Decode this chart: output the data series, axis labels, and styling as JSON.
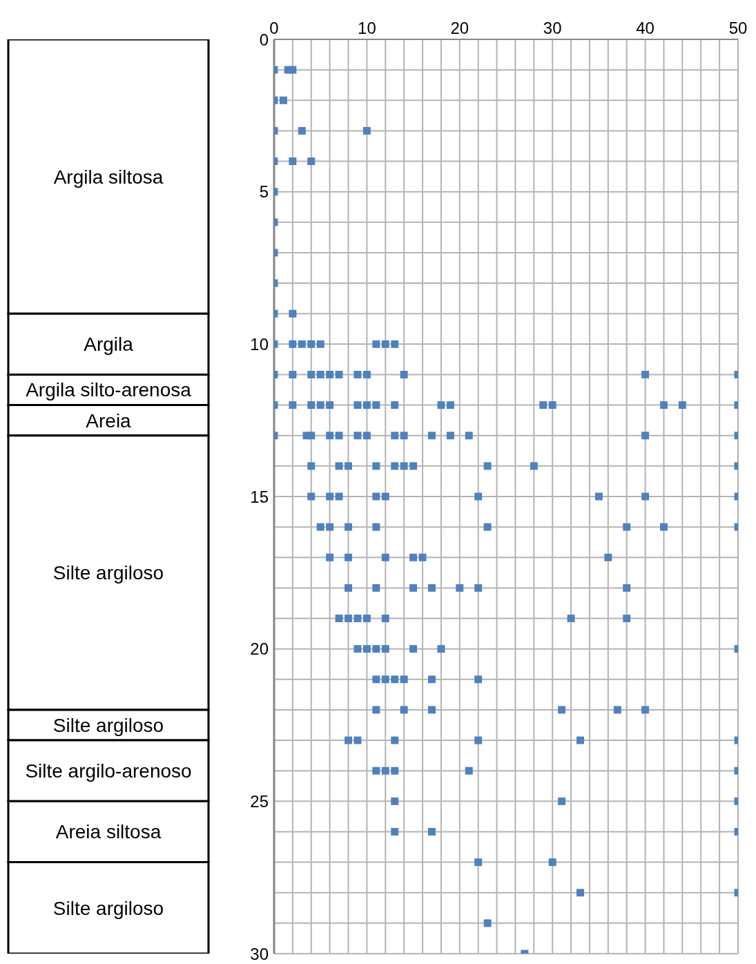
{
  "chart_data": [
    {
      "type": "bar",
      "stacked": true,
      "categories": [
        null
      ],
      "ylim": [
        30,
        0
      ],
      "tick_labels": false,
      "series": [
        {
          "name": "Argila siltosa",
          "color": "#ffffff",
          "values": [
            9
          ]
        },
        {
          "name": "Argila",
          "color": "#ffffff",
          "values": [
            2
          ]
        },
        {
          "name": "Argila silto-arenosa",
          "color": "#ffffff",
          "values": [
            1
          ]
        },
        {
          "name": "Areia",
          "color": "#ffffff",
          "values": [
            1
          ]
        },
        {
          "name": "Silte argiloso",
          "color": "#ffffff",
          "values": [
            9
          ]
        },
        {
          "name": "Silte argiloso",
          "color": "#ffffff",
          "values": [
            1
          ]
        },
        {
          "name": "Silte argilo-arenoso",
          "color": "#ffffff",
          "values": [
            2
          ]
        },
        {
          "name": "Areia siltosa",
          "color": "#ffffff",
          "values": [
            2
          ]
        },
        {
          "name": "Silte argiloso",
          "color": "#ffffff",
          "values": [
            3
          ]
        }
      ]
    },
    {
      "type": "scatter",
      "xlim": [
        0,
        50
      ],
      "xticks": [
        0,
        {
          "value": 2,
          "label": null
        },
        {
          "value": 4,
          "label": null
        },
        {
          "value": 6,
          "label": null
        },
        {
          "value": 8,
          "label": null
        },
        10,
        {
          "value": 12,
          "label": null
        },
        {
          "value": 14,
          "label": null
        },
        {
          "value": 16,
          "label": null
        },
        {
          "value": 18,
          "label": null
        },
        20,
        {
          "value": 22,
          "label": null
        },
        {
          "value": 24,
          "label": null
        },
        {
          "value": 26,
          "label": null
        },
        {
          "value": 28,
          "label": null
        },
        30,
        {
          "value": 32,
          "label": null
        },
        {
          "value": 34,
          "label": null
        },
        {
          "value": 36,
          "label": null
        },
        {
          "value": 38,
          "label": null
        },
        40,
        {
          "value": 42,
          "label": null
        },
        {
          "value": 44,
          "label": null
        },
        {
          "value": 46,
          "label": null
        },
        {
          "value": 48,
          "label": null
        },
        50
      ],
      "ylim": [
        30,
        0
      ],
      "yticks": [
        0,
        {
          "value": 1,
          "label": null
        },
        {
          "value": 2,
          "label": null
        },
        {
          "value": 3,
          "label": null
        },
        {
          "value": 4,
          "label": null
        },
        5,
        {
          "value": 6,
          "label": null
        },
        {
          "value": 7,
          "label": null
        },
        {
          "value": 8,
          "label": null
        },
        {
          "value": 9,
          "label": null
        },
        10,
        {
          "value": 11,
          "label": null
        },
        {
          "value": 12,
          "label": null
        },
        {
          "value": 13,
          "label": null
        },
        {
          "value": 14,
          "label": null
        },
        15,
        {
          "value": 16,
          "label": null
        },
        {
          "value": 17,
          "label": null
        },
        {
          "value": 18,
          "label": null
        },
        {
          "value": 19,
          "label": null
        },
        20,
        {
          "value": 21,
          "label": null
        },
        {
          "value": 22,
          "label": null
        },
        {
          "value": 23,
          "label": null
        },
        {
          "value": 24,
          "label": null
        },
        25,
        {
          "value": 26,
          "label": null
        },
        {
          "value": 27,
          "label": null
        },
        {
          "value": 28,
          "label": null
        },
        {
          "value": 29,
          "label": null
        },
        30
      ],
      "grid": true,
      "marker": "square",
      "series": [
        {
          "color": "#4f81bd",
          "x": [
            0,
            1.5,
            2,
            0,
            1,
            0,
            3,
            10,
            0,
            2,
            4,
            0,
            0,
            0,
            0,
            0,
            2,
            0,
            2,
            3,
            4,
            5,
            11,
            12,
            13,
            0,
            2,
            4,
            5,
            6,
            7,
            9,
            10,
            14,
            40,
            50,
            0,
            2,
            4,
            5,
            6,
            9,
            10,
            11,
            13,
            18,
            19,
            29,
            30,
            42,
            44,
            50,
            0,
            3.5,
            4,
            6,
            7,
            9,
            10,
            13,
            14,
            17,
            19,
            21,
            40,
            50,
            4,
            7,
            8,
            11,
            13,
            14,
            15,
            23,
            28,
            50,
            4,
            6,
            7,
            11,
            12,
            22,
            35,
            40,
            50,
            5,
            6,
            8,
            11,
            23,
            38,
            42,
            50,
            6,
            8,
            12,
            15,
            16,
            36,
            8,
            11,
            15,
            17,
            20,
            22,
            38,
            7,
            8,
            9,
            10,
            12,
            32,
            38,
            9,
            10,
            11,
            12,
            15,
            18,
            50,
            11,
            12,
            13,
            14,
            17,
            22,
            11,
            14,
            17,
            31,
            37,
            40,
            8,
            9,
            13,
            22,
            33,
            50,
            11,
            12,
            13,
            21,
            50,
            13,
            31,
            50,
            13,
            17,
            50,
            22,
            30,
            33,
            50,
            23,
            27
          ],
          "values": [
            1,
            1,
            1,
            2,
            2,
            3,
            3,
            3,
            4,
            4,
            4,
            5,
            6,
            7,
            8,
            9,
            9,
            10,
            10,
            10,
            10,
            10,
            10,
            10,
            10,
            11,
            11,
            11,
            11,
            11,
            11,
            11,
            11,
            11,
            11,
            11,
            12,
            12,
            12,
            12,
            12,
            12,
            12,
            12,
            12,
            12,
            12,
            12,
            12,
            12,
            12,
            12,
            13,
            13,
            13,
            13,
            13,
            13,
            13,
            13,
            13,
            13,
            13,
            13,
            13,
            13,
            14,
            14,
            14,
            14,
            14,
            14,
            14,
            14,
            14,
            14,
            15,
            15,
            15,
            15,
            15,
            15,
            15,
            15,
            15,
            16,
            16,
            16,
            16,
            16,
            16,
            16,
            16,
            17,
            17,
            17,
            17,
            17,
            17,
            18,
            18,
            18,
            18,
            18,
            18,
            18,
            19,
            19,
            19,
            19,
            19,
            19,
            19,
            20,
            20,
            20,
            20,
            20,
            20,
            20,
            21,
            21,
            21,
            21,
            21,
            21,
            22,
            22,
            22,
            22,
            22,
            22,
            23,
            23,
            23,
            23,
            23,
            23,
            24,
            24,
            24,
            24,
            24,
            25,
            25,
            25,
            26,
            26,
            26,
            27,
            27,
            28,
            28,
            29,
            30
          ]
        }
      ]
    }
  ]
}
